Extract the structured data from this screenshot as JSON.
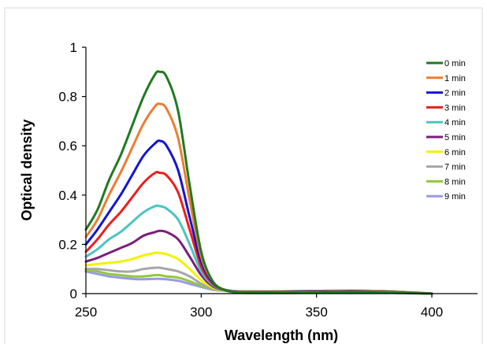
{
  "chart_data": {
    "type": "line",
    "title": "",
    "xlabel": "Wavelength (nm)",
    "ylabel": "Optical density",
    "xlim": [
      250,
      400
    ],
    "ylim": [
      0,
      1
    ],
    "x_ticks": [
      "250",
      "300",
      "350",
      "400"
    ],
    "y_ticks": [
      "0",
      "0.2",
      "0.4",
      "0.6",
      "0.8",
      "1"
    ],
    "grid": false,
    "legend_position": "top-right",
    "x": [
      250,
      255,
      260,
      265,
      270,
      275,
      280,
      282,
      285,
      290,
      295,
      300,
      305,
      310,
      315,
      320,
      330,
      340,
      350,
      360,
      370,
      380,
      390,
      400
    ],
    "series": [
      {
        "name": "0 min",
        "color": "#1f7a1f",
        "values": [
          0.26,
          0.34,
          0.46,
          0.56,
          0.68,
          0.8,
          0.89,
          0.9,
          0.88,
          0.74,
          0.44,
          0.17,
          0.05,
          0.015,
          0.005,
          0.003,
          0.003,
          0.003,
          0.004,
          0.006,
          0.006,
          0.004,
          0.002,
          0.0
        ]
      },
      {
        "name": "1 min",
        "color": "#ed7d31",
        "values": [
          0.23,
          0.3,
          0.4,
          0.49,
          0.59,
          0.69,
          0.76,
          0.77,
          0.75,
          0.63,
          0.38,
          0.15,
          0.05,
          0.015,
          0.006,
          0.004,
          0.004,
          0.004,
          0.005,
          0.007,
          0.007,
          0.005,
          0.003,
          0.0
        ]
      },
      {
        "name": "2 min",
        "color": "#1414d2",
        "values": [
          0.2,
          0.26,
          0.33,
          0.4,
          0.48,
          0.56,
          0.61,
          0.62,
          0.6,
          0.5,
          0.31,
          0.13,
          0.045,
          0.016,
          0.007,
          0.005,
          0.005,
          0.006,
          0.007,
          0.008,
          0.008,
          0.006,
          0.003,
          0.0
        ]
      },
      {
        "name": "3 min",
        "color": "#e8201e",
        "values": [
          0.17,
          0.22,
          0.28,
          0.33,
          0.39,
          0.45,
          0.49,
          0.49,
          0.48,
          0.41,
          0.26,
          0.11,
          0.04,
          0.016,
          0.008,
          0.006,
          0.006,
          0.007,
          0.008,
          0.009,
          0.009,
          0.007,
          0.004,
          0.0
        ]
      },
      {
        "name": "4 min",
        "color": "#4bc3c3",
        "values": [
          0.15,
          0.18,
          0.22,
          0.25,
          0.29,
          0.33,
          0.355,
          0.355,
          0.345,
          0.3,
          0.2,
          0.09,
          0.035,
          0.016,
          0.009,
          0.007,
          0.007,
          0.008,
          0.009,
          0.01,
          0.01,
          0.008,
          0.005,
          0.0
        ]
      },
      {
        "name": "5 min",
        "color": "#7b1f7b",
        "values": [
          0.13,
          0.145,
          0.165,
          0.185,
          0.205,
          0.235,
          0.25,
          0.255,
          0.25,
          0.22,
          0.15,
          0.075,
          0.03,
          0.015,
          0.009,
          0.008,
          0.008,
          0.009,
          0.01,
          0.011,
          0.011,
          0.009,
          0.005,
          0.0
        ]
      },
      {
        "name": "6 min",
        "color": "#f2f200",
        "values": [
          0.115,
          0.12,
          0.125,
          0.13,
          0.14,
          0.155,
          0.165,
          0.165,
          0.16,
          0.14,
          0.1,
          0.055,
          0.025,
          0.014,
          0.01,
          0.009,
          0.009,
          0.01,
          0.011,
          0.012,
          0.012,
          0.01,
          0.006,
          0.0
        ]
      },
      {
        "name": "7 min",
        "color": "#a6a6a6",
        "values": [
          0.1,
          0.1,
          0.095,
          0.09,
          0.09,
          0.1,
          0.105,
          0.105,
          0.1,
          0.09,
          0.07,
          0.04,
          0.02,
          0.013,
          0.01,
          0.009,
          0.009,
          0.01,
          0.011,
          0.012,
          0.012,
          0.01,
          0.006,
          0.0
        ]
      },
      {
        "name": "8 min",
        "color": "#92c83e",
        "values": [
          0.095,
          0.09,
          0.08,
          0.075,
          0.07,
          0.07,
          0.075,
          0.075,
          0.07,
          0.065,
          0.05,
          0.032,
          0.018,
          0.012,
          0.01,
          0.009,
          0.009,
          0.01,
          0.011,
          0.012,
          0.012,
          0.01,
          0.006,
          0.0
        ]
      },
      {
        "name": "9 min",
        "color": "#9999e6",
        "values": [
          0.09,
          0.08,
          0.07,
          0.065,
          0.06,
          0.058,
          0.06,
          0.06,
          0.058,
          0.052,
          0.04,
          0.027,
          0.016,
          0.012,
          0.01,
          0.009,
          0.009,
          0.01,
          0.011,
          0.012,
          0.012,
          0.01,
          0.006,
          0.0
        ]
      }
    ]
  }
}
